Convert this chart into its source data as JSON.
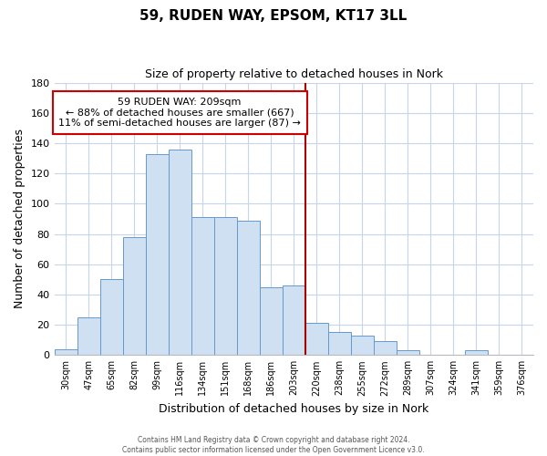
{
  "title": "59, RUDEN WAY, EPSOM, KT17 3LL",
  "subtitle": "Size of property relative to detached houses in Nork",
  "xlabel": "Distribution of detached houses by size in Nork",
  "ylabel": "Number of detached properties",
  "bin_labels": [
    "30sqm",
    "47sqm",
    "65sqm",
    "82sqm",
    "99sqm",
    "116sqm",
    "134sqm",
    "151sqm",
    "168sqm",
    "186sqm",
    "203sqm",
    "220sqm",
    "238sqm",
    "255sqm",
    "272sqm",
    "289sqm",
    "307sqm",
    "324sqm",
    "341sqm",
    "359sqm",
    "376sqm"
  ],
  "bar_heights": [
    4,
    25,
    50,
    78,
    133,
    136,
    91,
    91,
    89,
    45,
    46,
    21,
    15,
    13,
    9,
    3,
    0,
    0,
    3,
    0,
    0
  ],
  "bar_color": "#cfe0f3",
  "bar_edge_color": "#6699cc",
  "vline_x": 10.5,
  "vline_color": "#aa0000",
  "annotation_title": "59 RUDEN WAY: 209sqm",
  "annotation_line1": "← 88% of detached houses are smaller (667)",
  "annotation_line2": "11% of semi-detached houses are larger (87) →",
  "annotation_box_edge": "#cc0000",
  "ylim": [
    0,
    180
  ],
  "yticks": [
    0,
    20,
    40,
    60,
    80,
    100,
    120,
    140,
    160,
    180
  ],
  "footer_line1": "Contains HM Land Registry data © Crown copyright and database right 2024.",
  "footer_line2": "Contains public sector information licensed under the Open Government Licence v3.0.",
  "background_color": "#ffffff",
  "grid_color": "#c8d4e8"
}
